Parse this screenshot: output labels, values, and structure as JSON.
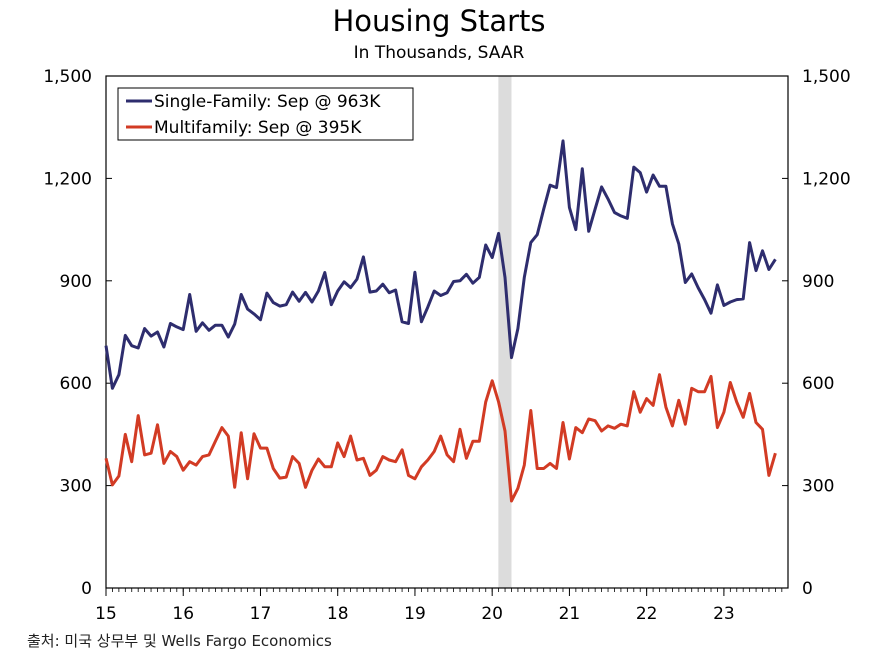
{
  "chart_data": {
    "type": "line",
    "title": "Housing Starts",
    "subtitle": "In Thousands, SAAR",
    "source": "출처: 미국 상무부 및 Wells Fargo Economics",
    "ylim": [
      0,
      1500
    ],
    "y_ticks": [
      "0",
      "300",
      "600",
      "900",
      "1,200",
      "1,500"
    ],
    "y_tick_values": [
      0,
      300,
      600,
      900,
      1200,
      1500
    ],
    "x_ticks": [
      "15",
      "16",
      "17",
      "18",
      "19",
      "20",
      "21",
      "22",
      "23"
    ],
    "x_tick_values": [
      2015,
      2016,
      2017,
      2018,
      2019,
      2020,
      2021,
      2022,
      2023
    ],
    "xlim": [
      2015,
      2023.83
    ],
    "legend_position": "top-left",
    "recession_shading": [
      2020.08,
      2020.25
    ],
    "colors": {
      "single_family": "#2e2d6e",
      "multifamily": "#d23b24",
      "recession": "#dcdcdc"
    },
    "series": [
      {
        "name": "Single-Family: Sep @ 963K",
        "x_start": 2015.0,
        "step": 0.08333,
        "values": [
          710,
          585,
          625,
          740,
          710,
          703,
          760,
          738,
          750,
          706,
          775,
          765,
          757,
          860,
          752,
          777,
          755,
          770,
          770,
          735,
          773,
          860,
          817,
          803,
          786,
          864,
          836,
          826,
          830,
          867,
          840,
          866,
          838,
          870,
          924,
          830,
          870,
          897,
          880,
          905,
          970,
          867,
          870,
          890,
          865,
          873,
          780,
          775,
          925,
          780,
          823,
          870,
          857,
          865,
          898,
          900,
          919,
          893,
          910,
          1005,
          968,
          1039,
          910,
          675,
          760,
          910,
          1012,
          1035,
          1110,
          1180,
          1173,
          1310,
          1115,
          1050,
          1228,
          1045,
          1110,
          1175,
          1140,
          1100,
          1090,
          1083,
          1233,
          1217,
          1160,
          1210,
          1177,
          1177,
          1067,
          1008,
          895,
          920,
          880,
          845,
          805,
          888,
          828,
          838,
          845,
          847,
          1012,
          930,
          988,
          933,
          963
        ]
      },
      {
        "name": "Multifamily: Sep @ 395K",
        "x_start": 2015.0,
        "step": 0.08333,
        "values": [
          380,
          302,
          328,
          450,
          370,
          505,
          390,
          395,
          478,
          365,
          400,
          385,
          345,
          370,
          360,
          385,
          390,
          430,
          470,
          445,
          295,
          455,
          320,
          452,
          410,
          410,
          350,
          322,
          325,
          385,
          365,
          295,
          345,
          378,
          355,
          355,
          425,
          385,
          445,
          375,
          380,
          330,
          345,
          385,
          375,
          370,
          405,
          330,
          320,
          355,
          375,
          400,
          445,
          390,
          370,
          465,
          380,
          430,
          430,
          545,
          607,
          545,
          460,
          255,
          292,
          360,
          520,
          350,
          350,
          365,
          350,
          485,
          378,
          470,
          455,
          495,
          490,
          460,
          475,
          468,
          480,
          475,
          575,
          515,
          555,
          535,
          625,
          530,
          475,
          550,
          480,
          585,
          575,
          575,
          620,
          470,
          515,
          602,
          545,
          500,
          570,
          485,
          465,
          330,
          395
        ]
      }
    ]
  }
}
